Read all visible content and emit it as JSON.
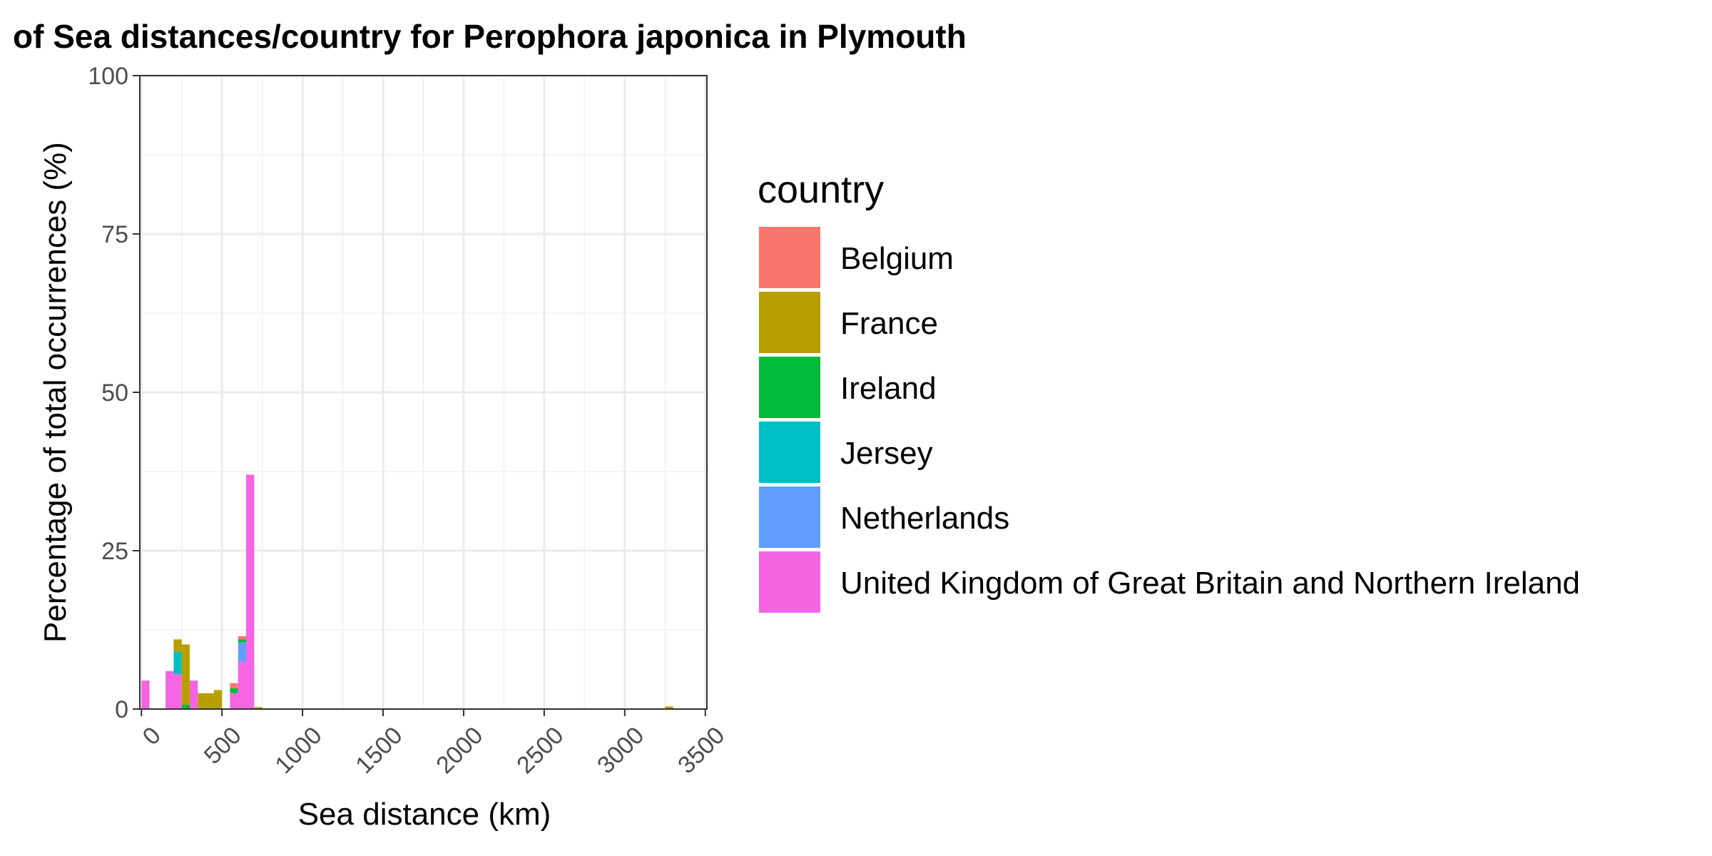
{
  "chart_data": {
    "type": "bar",
    "stacked": true,
    "title": "of Sea distances/country for Perophora japonica in Plymouth",
    "xlabel": "Sea distance (km)",
    "ylabel": "Percentage of total occurrences (%)",
    "xlim": [
      -10,
      3510
    ],
    "ylim": [
      0,
      100
    ],
    "bin_width": 50,
    "x_ticks": [
      0,
      500,
      1000,
      1500,
      2000,
      2500,
      3000,
      3500
    ],
    "y_ticks": [
      0,
      25,
      50,
      75,
      100
    ],
    "x_tick_labels": [
      "0",
      "500",
      "1000",
      "1500",
      "2000",
      "2500",
      "3000",
      "3500"
    ],
    "y_tick_labels": [
      "0",
      "25",
      "50",
      "75",
      "100"
    ],
    "grid": true,
    "legend": {
      "title": "country",
      "position": "right",
      "entries": [
        {
          "name": "Belgium",
          "color": "#F8766D"
        },
        {
          "name": "France",
          "color": "#B79F00"
        },
        {
          "name": "Ireland",
          "color": "#00BA38"
        },
        {
          "name": "Jersey",
          "color": "#00BFC4"
        },
        {
          "name": "Netherlands",
          "color": "#619CFF"
        },
        {
          "name": "United Kingdom of Great Britain and Northern Ireland",
          "color": "#F564E3"
        }
      ]
    },
    "x": [
      0,
      50,
      100,
      150,
      200,
      250,
      300,
      350,
      400,
      450,
      500,
      550,
      600,
      650,
      700,
      3250
    ],
    "series": [
      {
        "name": "Belgium",
        "values": [
          0,
          0,
          0,
          0,
          0,
          0,
          0,
          0,
          0,
          0,
          0,
          0.8,
          0.5,
          0,
          0,
          0
        ]
      },
      {
        "name": "France",
        "values": [
          0,
          0,
          0,
          0,
          2.0,
          9.5,
          0,
          2.5,
          2.5,
          3.0,
          0,
          0,
          0,
          0,
          0.3,
          0.4
        ]
      },
      {
        "name": "Ireland",
        "values": [
          0,
          0,
          0,
          0,
          0,
          0.7,
          0,
          0,
          0,
          0,
          0,
          0.8,
          0.5,
          0,
          0,
          0
        ]
      },
      {
        "name": "Jersey",
        "values": [
          0,
          0,
          0,
          0,
          3.5,
          0,
          0,
          0,
          0,
          0,
          0,
          0,
          0,
          0,
          0,
          0
        ]
      },
      {
        "name": "Netherlands",
        "values": [
          0,
          0,
          0,
          0,
          0,
          0,
          0,
          0,
          0,
          0,
          0,
          0,
          3.0,
          0,
          0,
          0
        ]
      },
      {
        "name": "United Kingdom of Great Britain and Northern Ireland",
        "values": [
          4.5,
          0,
          0,
          6.0,
          5.5,
          0,
          4.5,
          0,
          0,
          0,
          0,
          2.5,
          7.5,
          37.0,
          0,
          0
        ]
      }
    ]
  }
}
